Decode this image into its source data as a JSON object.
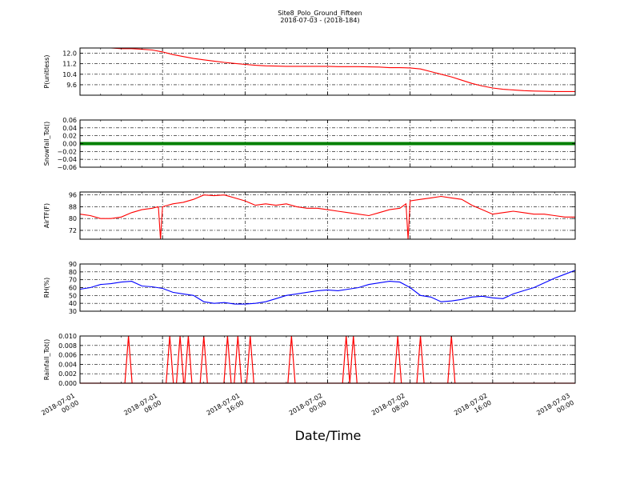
{
  "figure": {
    "title": "Site8_Polo_Ground_Fifteen",
    "subtitle": "2018-07-03 - (2018-184)",
    "xlabel": "Date/Time"
  },
  "chart_data": {
    "type": "line",
    "grid": true,
    "x_tick_labels": [
      [
        "2018-07-01",
        "00:00"
      ],
      [
        "2018-07-01",
        "08:00"
      ],
      [
        "2018-07-01",
        "16:00"
      ],
      [
        "2018-07-02",
        "00:00"
      ],
      [
        "2018-07-02",
        "08:00"
      ],
      [
        "2018-07-02",
        "16:00"
      ],
      [
        "2018-07-03",
        "00:00"
      ]
    ],
    "x_range_hours": [
      0,
      48
    ],
    "panels": [
      {
        "ylabel": "P(unitless)",
        "color": "#ff0000",
        "ylim": [
          8.8,
          12.4
        ],
        "yticks": [
          "12.0",
          "11.2",
          "10.4",
          "9.6"
        ],
        "ytick_values": [
          12.0,
          11.2,
          10.4,
          9.6
        ],
        "x": [
          0,
          1,
          2,
          3,
          4,
          5,
          6,
          7,
          8,
          9,
          10,
          11,
          12,
          13,
          14,
          15,
          16,
          17,
          18,
          19,
          20,
          21,
          22,
          23,
          24,
          25,
          26,
          27,
          28,
          29,
          30,
          31,
          32,
          33,
          34,
          35,
          36,
          37,
          38,
          39,
          40,
          41,
          42,
          43,
          44,
          45,
          46,
          47,
          48
        ],
        "y": [
          12.4,
          12.4,
          12.4,
          12.4,
          12.35,
          12.35,
          12.3,
          12.25,
          12.1,
          11.9,
          11.75,
          11.6,
          11.5,
          11.4,
          11.3,
          11.22,
          11.15,
          11.08,
          11.04,
          11.02,
          11.0,
          11.0,
          11.0,
          11.0,
          11.0,
          10.98,
          10.98,
          10.98,
          10.96,
          10.95,
          10.9,
          10.9,
          10.88,
          10.8,
          10.6,
          10.4,
          10.2,
          9.95,
          9.7,
          9.5,
          9.35,
          9.25,
          9.2,
          9.15,
          9.12,
          9.1,
          9.08,
          9.08,
          9.08
        ]
      },
      {
        "ylabel": "Snowfall_Tot()",
        "color": "#008000",
        "ylim": [
          -0.06,
          0.06
        ],
        "yticks": [
          "0.06",
          "0.04",
          "0.02",
          "0.00",
          "−0.02",
          "−0.04",
          "−0.06"
        ],
        "ytick_values": [
          0.06,
          0.04,
          0.02,
          0.0,
          -0.02,
          -0.04,
          -0.06
        ],
        "x": [
          0,
          48
        ],
        "y": [
          0,
          0
        ]
      },
      {
        "ylabel": "AirTF(F)",
        "color": "#ff0000",
        "ylim": [
          66,
          98
        ],
        "yticks": [
          "96",
          "88",
          "80",
          "72"
        ],
        "ytick_values": [
          96,
          88,
          80,
          72
        ],
        "x": [
          0,
          1,
          2,
          3,
          4,
          5,
          6,
          7,
          7.6,
          7.8,
          8,
          9,
          10,
          11,
          12,
          13,
          14,
          15,
          16,
          17,
          18,
          19,
          20,
          21,
          22,
          23,
          24,
          25,
          26,
          27,
          28,
          29,
          30,
          31,
          31.6,
          31.8,
          32,
          33,
          34,
          35,
          36,
          37,
          38,
          39,
          40,
          41,
          42,
          43,
          44,
          45,
          46,
          47,
          48
        ],
        "y": [
          83,
          82,
          80,
          80,
          81,
          84,
          86,
          87,
          88,
          66,
          88,
          90,
          91,
          93,
          96,
          95.5,
          96,
          94,
          92,
          89,
          90,
          89,
          90,
          88,
          87,
          87,
          86,
          85,
          84,
          83,
          82,
          84,
          86,
          87,
          90,
          66,
          92,
          93,
          94,
          95,
          94,
          93,
          89,
          86,
          83,
          84,
          85,
          84,
          83,
          83,
          82,
          81,
          81
        ]
      },
      {
        "ylabel": "RH(%)",
        "color": "#0000ff",
        "ylim": [
          30,
          90
        ],
        "yticks": [
          "90",
          "80",
          "70",
          "60",
          "50",
          "40",
          "30"
        ],
        "ytick_values": [
          90,
          80,
          70,
          60,
          50,
          40,
          30
        ],
        "x": [
          0,
          1,
          2,
          3,
          4,
          5,
          6,
          7,
          8,
          9,
          10,
          11,
          12,
          13,
          14,
          15,
          16,
          17,
          18,
          19,
          20,
          21,
          22,
          23,
          24,
          25,
          26,
          27,
          28,
          29,
          30,
          31,
          32,
          33,
          34,
          35,
          36,
          37,
          38,
          39,
          40,
          41,
          42,
          43,
          44,
          45,
          46,
          47,
          48
        ],
        "y": [
          58,
          60,
          64,
          65,
          67,
          68,
          62,
          61,
          59,
          54,
          52,
          50,
          42,
          40,
          41,
          39,
          39,
          40,
          42,
          46,
          50,
          52,
          54,
          56,
          57,
          56,
          58,
          60,
          64,
          66,
          68,
          67,
          60,
          50,
          48,
          42,
          43,
          45,
          48,
          49,
          47,
          46,
          52,
          56,
          60,
          66,
          72,
          77,
          82
        ]
      },
      {
        "ylabel": "Rainfall_Tot()",
        "color": "#ff0000",
        "ylim": [
          0,
          0.01
        ],
        "yticks": [
          "0.010",
          "0.008",
          "0.006",
          "0.004",
          "0.002",
          "0.000"
        ],
        "ytick_values": [
          0.01,
          0.008,
          0.006,
          0.004,
          0.002,
          0.0
        ],
        "spike_x": [
          4.7,
          8.7,
          9.7,
          10.5,
          12.0,
          14.3,
          15.3,
          16.5,
          20.5,
          25.8,
          26.5,
          30.8,
          33.0,
          36.0
        ],
        "spike_value": 0.01
      }
    ]
  }
}
